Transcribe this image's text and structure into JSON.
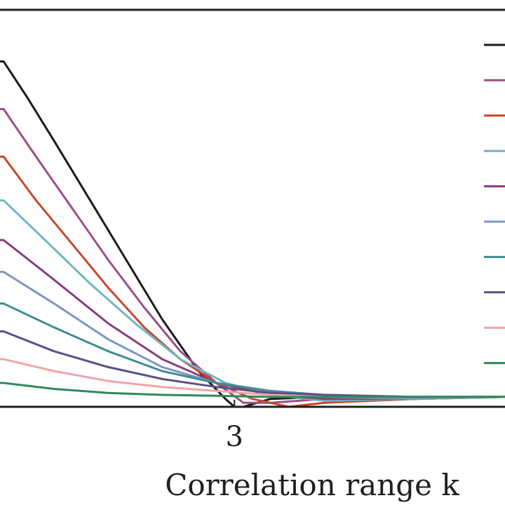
{
  "chart_data": {
    "type": "line",
    "title": "",
    "xlabel": "Correlation range k",
    "ylabel": "",
    "x_ticks": [
      "3"
    ],
    "xlim": [
      1.7,
      4.5
    ],
    "ylim": [
      0,
      1.0
    ],
    "grid": false,
    "legend": {
      "position": "top-right",
      "labels_visible": false
    },
    "series": [
      {
        "color": "#1a1a1a",
        "x": [
          1.7,
          1.72,
          1.85,
          2.0,
          2.2,
          2.4,
          2.6,
          2.8,
          2.95,
          3.0,
          3.05,
          3.2,
          3.5,
          4.0,
          4.5
        ],
        "y": [
          0.87,
          0.87,
          0.78,
          0.67,
          0.52,
          0.37,
          0.22,
          0.09,
          0.02,
          0.0,
          0.0,
          0.02,
          0.025,
          0.025,
          0.025
        ]
      },
      {
        "color": "#9b4f8a",
        "x": [
          1.7,
          1.72,
          1.9,
          2.1,
          2.3,
          2.5,
          2.7,
          2.9,
          3.05,
          3.2,
          3.5,
          4.0,
          4.5
        ],
        "y": [
          0.75,
          0.75,
          0.63,
          0.5,
          0.37,
          0.25,
          0.14,
          0.06,
          0.01,
          0.01,
          0.02,
          0.025,
          0.025
        ]
      },
      {
        "color": "#c8472a",
        "x": [
          1.7,
          1.72,
          1.9,
          2.1,
          2.3,
          2.5,
          2.7,
          2.9,
          3.1,
          3.3,
          3.5,
          4.0,
          4.5
        ],
        "y": [
          0.63,
          0.63,
          0.52,
          0.41,
          0.3,
          0.2,
          0.12,
          0.06,
          0.02,
          0.0,
          0.01,
          0.02,
          0.025
        ]
      },
      {
        "color": "#6fb5c4",
        "x": [
          1.7,
          1.72,
          1.95,
          2.2,
          2.45,
          2.7,
          2.95,
          3.2,
          3.5,
          4.0,
          4.5
        ],
        "y": [
          0.52,
          0.52,
          0.42,
          0.31,
          0.21,
          0.12,
          0.06,
          0.03,
          0.015,
          0.02,
          0.025
        ]
      },
      {
        "color": "#8a3d7e",
        "x": [
          1.7,
          1.72,
          2.0,
          2.3,
          2.6,
          2.9,
          3.2,
          3.5,
          4.0,
          4.5
        ],
        "y": [
          0.42,
          0.42,
          0.32,
          0.21,
          0.12,
          0.06,
          0.03,
          0.02,
          0.02,
          0.025
        ]
      },
      {
        "color": "#7e95c4",
        "x": [
          1.7,
          1.72,
          2.0,
          2.3,
          2.6,
          2.9,
          3.2,
          3.5,
          4.0,
          4.5
        ],
        "y": [
          0.34,
          0.34,
          0.26,
          0.17,
          0.1,
          0.06,
          0.04,
          0.025,
          0.02,
          0.025
        ]
      },
      {
        "color": "#3f8c93",
        "x": [
          1.7,
          1.72,
          2.0,
          2.3,
          2.6,
          2.9,
          3.2,
          3.5,
          4.0,
          4.5
        ],
        "y": [
          0.26,
          0.26,
          0.2,
          0.14,
          0.09,
          0.06,
          0.04,
          0.03,
          0.025,
          0.025
        ]
      },
      {
        "color": "#5c4f86",
        "x": [
          1.7,
          1.72,
          2.0,
          2.3,
          2.6,
          2.9,
          3.2,
          3.5,
          4.0,
          4.5
        ],
        "y": [
          0.19,
          0.19,
          0.14,
          0.1,
          0.07,
          0.05,
          0.035,
          0.03,
          0.025,
          0.025
        ]
      },
      {
        "color": "#f0a5a8",
        "x": [
          1.7,
          1.72,
          2.0,
          2.3,
          2.6,
          2.9,
          3.2,
          3.5,
          4.0,
          4.5
        ],
        "y": [
          0.12,
          0.12,
          0.09,
          0.065,
          0.05,
          0.04,
          0.03,
          0.025,
          0.025,
          0.025
        ]
      },
      {
        "color": "#2e8b57",
        "x": [
          1.7,
          1.72,
          2.0,
          2.3,
          2.6,
          2.9,
          3.2,
          3.5,
          4.0,
          4.5
        ],
        "y": [
          0.06,
          0.06,
          0.045,
          0.035,
          0.03,
          0.028,
          0.025,
          0.025,
          0.025,
          0.025
        ]
      }
    ]
  }
}
